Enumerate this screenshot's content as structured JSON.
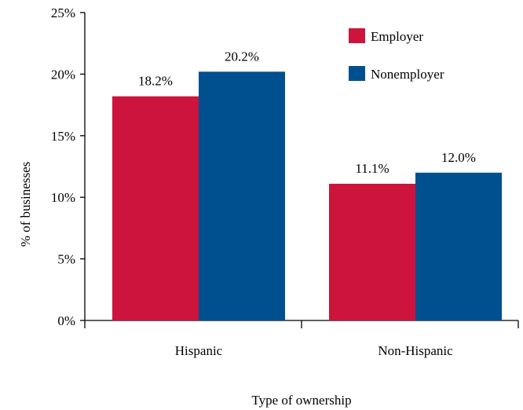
{
  "chart_data": {
    "type": "bar",
    "categories": [
      "Hispanic",
      "Non-Hispanic"
    ],
    "series": [
      {
        "name": "Employer",
        "values": [
          18.2,
          11.1
        ],
        "labels": [
          "18.2%",
          "11.1%"
        ],
        "color": "#CC143C"
      },
      {
        "name": "Nonemployer",
        "values": [
          20.2,
          12.0
        ],
        "labels": [
          "20.2%",
          "12.0%"
        ],
        "color": "#00508F"
      }
    ],
    "xlabel": "Type of ownership",
    "ylabel": "% of businesses",
    "ylim": [
      0,
      25
    ],
    "yticks": [
      0,
      5,
      10,
      15,
      20,
      25
    ],
    "ytick_labels": [
      "0%",
      "5%",
      "10%",
      "15%",
      "20%",
      "25%"
    ],
    "grid": false,
    "legend_position": "top-right"
  }
}
